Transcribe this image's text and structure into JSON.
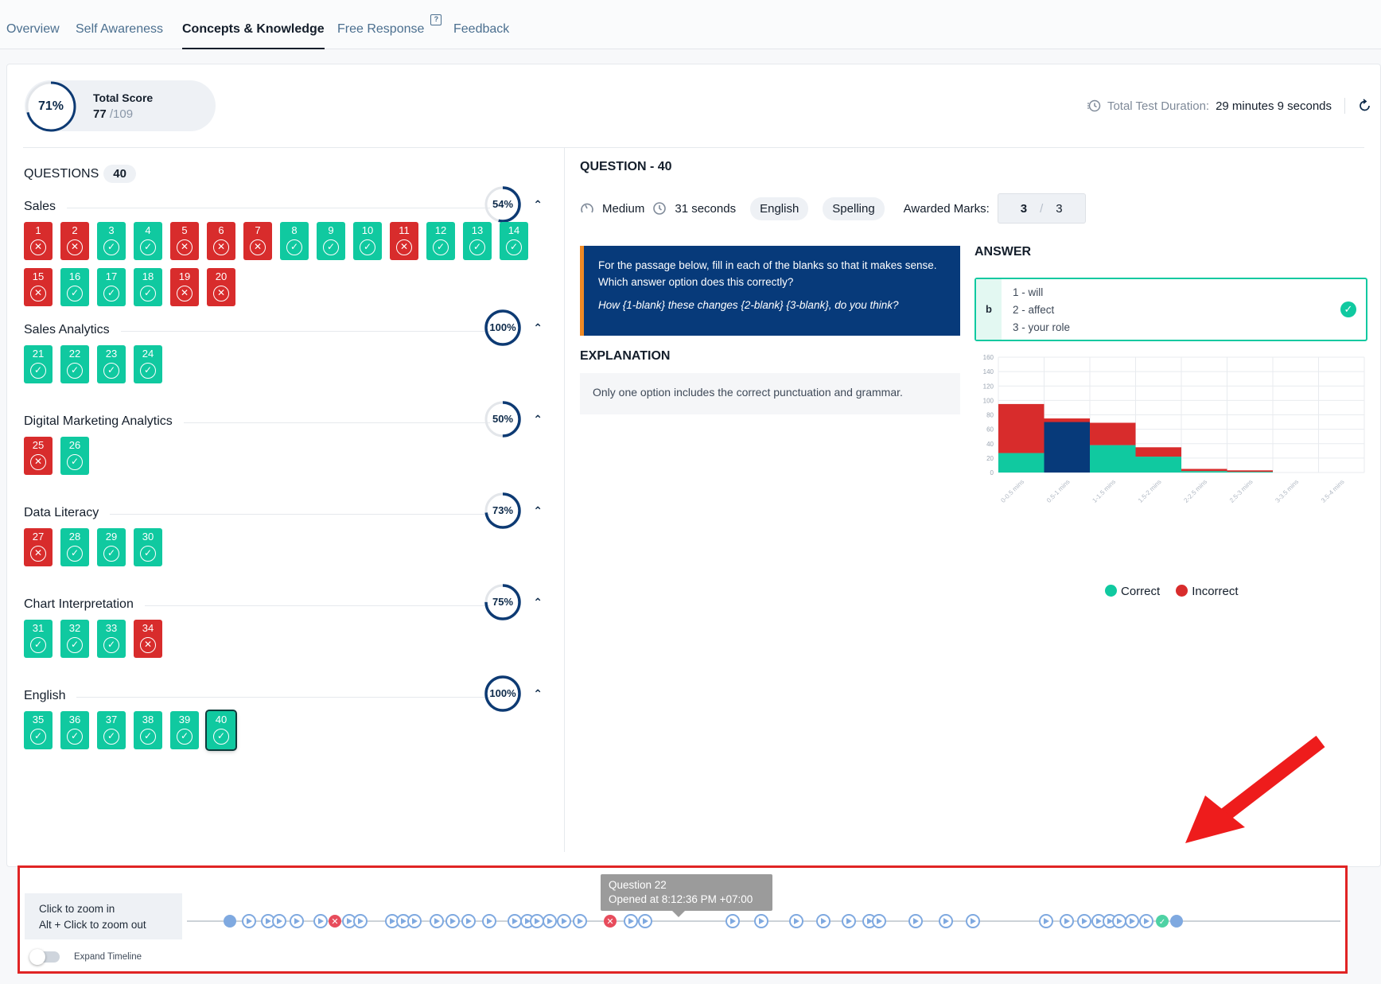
{
  "tabs": [
    {
      "label": "Overview",
      "active": false
    },
    {
      "label": "Self Awareness",
      "active": false
    },
    {
      "label": "Concepts & Knowledge",
      "active": true
    },
    {
      "label": "Free Response",
      "active": false
    },
    {
      "label": "Feedback",
      "active": false
    }
  ],
  "score": {
    "percent": "71%",
    "fraction": 0.71,
    "label": "Total Score",
    "value": "77",
    "total": "/109"
  },
  "duration": {
    "label": "Total Test Duration:",
    "value": "29 minutes 9 seconds"
  },
  "questions": {
    "label": "QUESTIONS",
    "count": "40"
  },
  "sections": [
    {
      "title": "Sales",
      "percent": "54%",
      "fraction": 0.54,
      "items": [
        [
          "1",
          0
        ],
        [
          "2",
          0
        ],
        [
          "3",
          1
        ],
        [
          "4",
          1
        ],
        [
          "5",
          0
        ],
        [
          "6",
          0
        ],
        [
          "7",
          0
        ],
        [
          "8",
          1
        ],
        [
          "9",
          1
        ],
        [
          "10",
          1
        ],
        [
          "11",
          0
        ],
        [
          "12",
          1
        ],
        [
          "13",
          1
        ],
        [
          "14",
          1
        ],
        [
          "15",
          0
        ],
        [
          "16",
          1
        ],
        [
          "17",
          1
        ],
        [
          "18",
          1
        ],
        [
          "19",
          0
        ],
        [
          "20",
          0
        ]
      ]
    },
    {
      "title": "Sales Analytics",
      "percent": "100%",
      "fraction": 1.0,
      "items": [
        [
          "21",
          1
        ],
        [
          "22",
          1
        ],
        [
          "23",
          1
        ],
        [
          "24",
          1
        ]
      ]
    },
    {
      "title": "Digital Marketing Analytics",
      "percent": "50%",
      "fraction": 0.5,
      "items": [
        [
          "25",
          0
        ],
        [
          "26",
          1
        ]
      ]
    },
    {
      "title": "Data Literacy",
      "percent": "73%",
      "fraction": 0.73,
      "items": [
        [
          "27",
          0
        ],
        [
          "28",
          1
        ],
        [
          "29",
          1
        ],
        [
          "30",
          1
        ]
      ]
    },
    {
      "title": "Chart Interpretation",
      "percent": "75%",
      "fraction": 0.75,
      "items": [
        [
          "31",
          1
        ],
        [
          "32",
          1
        ],
        [
          "33",
          1
        ],
        [
          "34",
          0
        ]
      ]
    },
    {
      "title": "English",
      "percent": "100%",
      "fraction": 1.0,
      "items": [
        [
          "35",
          1
        ],
        [
          "36",
          1
        ],
        [
          "37",
          1
        ],
        [
          "38",
          1
        ],
        [
          "39",
          1
        ],
        [
          "40",
          1
        ]
      ]
    }
  ],
  "selected_question": "40",
  "question": {
    "title": "QUESTION - 40",
    "difficulty": "Medium",
    "time": "31 seconds",
    "tags": [
      "English",
      "Spelling"
    ],
    "marks_label": "Awarded Marks:",
    "marks_awarded": "3",
    "marks_total": "3",
    "prompt": "For the passage below, fill in each of the blanks so that it makes sense. Which answer option does this correctly?",
    "prompt_italic": "How {1-blank} these changes {2-blank} {3-blank}, do you think?",
    "explanation_heading": "EXPLANATION",
    "explanation": "Only one option includes the correct punctuation and grammar.",
    "answer_heading": "ANSWER",
    "answer_letter": "b",
    "answer_lines": [
      "1 - will",
      "2 - affect",
      "3 - your role"
    ]
  },
  "chart_data": {
    "type": "bar",
    "stacked": true,
    "categories": [
      "0-0.5 mins",
      "0.5-1 mins",
      "1-1.5 mins",
      "1.5-2 mins",
      "2-2.5 mins",
      "2.5-3 mins",
      "3-3.5 mins",
      "3.5-4 mins"
    ],
    "series": [
      {
        "name": "Correct",
        "values": [
          27,
          0,
          38,
          22,
          2,
          1,
          0,
          0
        ],
        "color": "#10c9a0"
      },
      {
        "name": "Incorrect",
        "values": [
          68,
          75,
          31,
          13,
          3,
          2,
          0,
          0
        ],
        "color": "#d82c2c"
      }
    ],
    "highlight": {
      "category": "0.5-1 mins",
      "value": 70,
      "color": "#073a7a"
    },
    "ylim": [
      0,
      160
    ],
    "yticks": [
      "0",
      "20",
      "40",
      "60",
      "80",
      "100",
      "120",
      "140",
      "160"
    ],
    "grid": true,
    "legend": "bottom"
  },
  "legend": [
    {
      "name": "Correct",
      "color": "#10c9a0"
    },
    {
      "name": "Incorrect",
      "color": "#d82c2c"
    }
  ],
  "timeline": {
    "help_line1": "Click to zoom in",
    "help_line2": "Alt + Click to zoom out",
    "toggle_label": "Expand Timeline",
    "tooltip_title": "Question 22",
    "tooltip_sub": "Opened at 8:12:36 PM +07:00"
  },
  "colors": {
    "accent": "#073a7a",
    "correct": "#10c9a0",
    "incorrect": "#d82c2c",
    "timeline_node": "#8ab4e8",
    "annotation": "#e02424"
  }
}
